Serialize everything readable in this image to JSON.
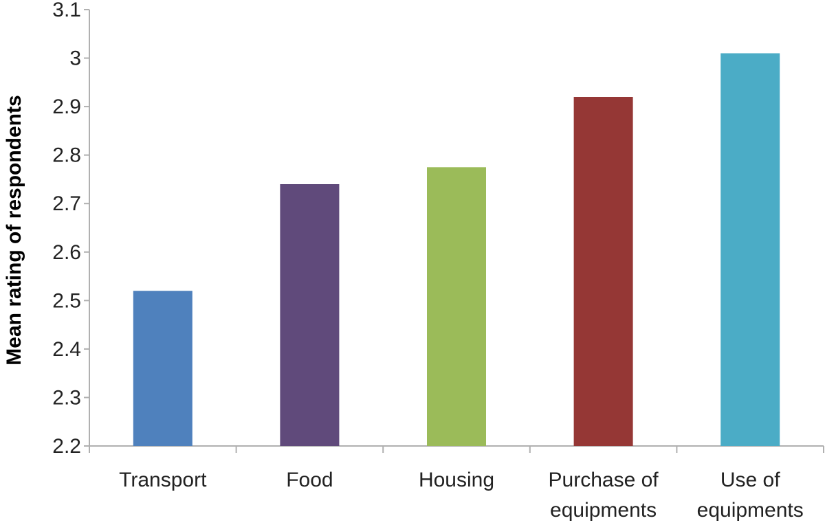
{
  "chart_data": {
    "type": "bar",
    "title": "",
    "xlabel": "",
    "ylabel": "Mean rating of respondents",
    "ylim": [
      2.2,
      3.1
    ],
    "yticks": [
      "2.2",
      "2.3",
      "2.4",
      "2.5",
      "2.6",
      "2.7",
      "2.8",
      "2.9",
      "3",
      "3.1"
    ],
    "grid": false,
    "legend": "none",
    "categories": [
      [
        "Transport"
      ],
      [
        "Food"
      ],
      [
        "Housing"
      ],
      [
        "Purchase of",
        "equipments"
      ],
      [
        "Use of",
        "equipments"
      ]
    ],
    "values": [
      2.52,
      2.74,
      2.775,
      2.92,
      3.01
    ],
    "colors": [
      "#4F81BD",
      "#604A7B",
      "#9BBB59",
      "#953735",
      "#4BACC6"
    ],
    "axis_color": "#b0b0b0"
  }
}
